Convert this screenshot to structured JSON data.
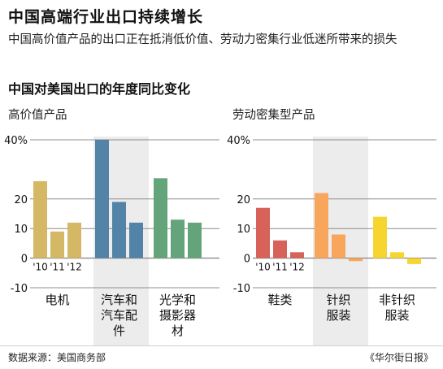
{
  "title": "中国高端行业出口持续增长",
  "subtitle": "中国高价值产品的出口正在抵消低价值、劳动力密集行业低迷所带来的损失",
  "section_title": "中国对美国出口的年度同比变化",
  "source": "数据来源：美国商务部",
  "credit": "《华尔街日报》",
  "colors": {
    "电机": "#d4b866",
    "汽车和汽车配件": "#5383a6",
    "光学和摄影器材": "#63a47a",
    "鞋类": "#d6625a",
    "针织服装": "#f7a65c",
    "非针织服装": "#f7d530",
    "band": "#ececec",
    "grid": "#8c8c8c"
  },
  "chart_data": [
    {
      "type": "bar",
      "title": "高价值产品",
      "ylim": [
        -10,
        40
      ],
      "yticks": [
        "-10",
        "0",
        "10",
        "20",
        "40%"
      ],
      "year_labels": [
        "'10",
        "'11",
        "'12"
      ],
      "groups": [
        {
          "name": "电机",
          "label_lines": [
            "电机"
          ],
          "values": [
            26,
            9,
            12
          ]
        },
        {
          "name": "汽车和汽车配件",
          "label_lines": [
            "汽车和",
            "汽车配",
            "件"
          ],
          "values": [
            40,
            19,
            12
          ]
        },
        {
          "name": "光学和摄影器材",
          "label_lines": [
            "光学和",
            "摄影器",
            "材"
          ],
          "values": [
            27,
            13,
            12
          ]
        }
      ]
    },
    {
      "type": "bar",
      "title": "劳动密集型产品",
      "ylim": [
        -10,
        40
      ],
      "yticks": [
        "-10",
        "0",
        "10",
        "20",
        "40%"
      ],
      "year_labels": [
        "'10",
        "'11",
        "'12"
      ],
      "groups": [
        {
          "name": "鞋类",
          "label_lines": [
            "鞋类"
          ],
          "values": [
            17,
            6,
            2
          ]
        },
        {
          "name": "针织服装",
          "label_lines": [
            "针织",
            "服装"
          ],
          "values": [
            22,
            8,
            -1
          ]
        },
        {
          "name": "非针织服装",
          "label_lines": [
            "非针织",
            "服装"
          ],
          "values": [
            14,
            2,
            -2
          ]
        }
      ]
    }
  ]
}
